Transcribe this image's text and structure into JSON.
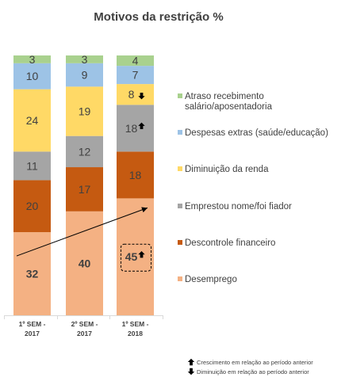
{
  "chart_data": {
    "type": "bar",
    "stacked": true,
    "title": "Motivos da restrição  %",
    "categories": [
      "1º SEM - 2017",
      "2º SEM - 2017",
      "1º SEM - 2018"
    ],
    "series": [
      {
        "name": "Desemprego",
        "values": [
          32,
          40,
          45
        ],
        "color": "#f4b183"
      },
      {
        "name": "Descontrole financeiro",
        "values": [
          20,
          17,
          18
        ],
        "color": "#c55a11"
      },
      {
        "name": "Emprestou nome/foi fiador",
        "values": [
          11,
          12,
          18
        ],
        "color": "#a5a5a5"
      },
      {
        "name": "Diminuição da renda",
        "values": [
          24,
          19,
          8
        ],
        "color": "#ffd966"
      },
      {
        "name": "Despesas extras (saúde/educação)",
        "values": [
          10,
          9,
          7
        ],
        "color": "#9dc3e6"
      },
      {
        "name": "Atraso recebimento salário/aposentadoria",
        "values": [
          3,
          3,
          4
        ],
        "color": "#a9d18e"
      }
    ],
    "legend_placement": "right",
    "grid": false,
    "indicators": [
      {
        "category": "1º SEM - 2018",
        "series": "Desemprego",
        "direction": "up"
      },
      {
        "category": "1º SEM - 2018",
        "series": "Emprestou nome/foi fiador",
        "direction": "up"
      },
      {
        "category": "1º SEM - 2018",
        "series": "Diminuição da renda",
        "direction": "down"
      }
    ],
    "highlight": {
      "category": "1º SEM - 2018",
      "series": "Desemprego"
    },
    "trend_arrow": {
      "from_category": "1º SEM - 2017",
      "to_category": "1º SEM - 2018",
      "series": "Desemprego"
    }
  },
  "legend_order": [
    "Atraso recebimento salário/aposentadoria",
    "Despesas extras (saúde/educação)",
    "Diminuição da renda",
    "Emprestou nome/foi fiador",
    "Descontrole financeiro",
    "Desemprego"
  ],
  "footnotes": {
    "up": "Crescimento em relação ao período anterior",
    "down": "Diminuição em relação ao período anterior"
  }
}
